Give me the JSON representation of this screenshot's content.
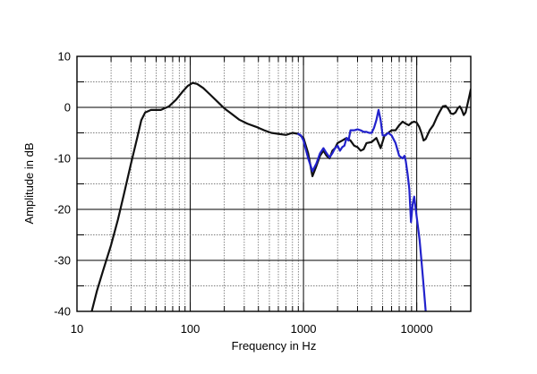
{
  "chart_data": {
    "type": "line",
    "title": "",
    "xlabel": "Frequency in Hz",
    "ylabel": "Amplitude in dB",
    "xscale": "log",
    "xlim": [
      10,
      30000
    ],
    "ylim": [
      -40,
      10
    ],
    "xticks": [
      10,
      100,
      1000,
      10000
    ],
    "xtick_labels": [
      "10",
      "100",
      "1000",
      "10000"
    ],
    "yticks": [
      -40,
      -30,
      -20,
      -10,
      0,
      10
    ],
    "ytick_labels": [
      "-40",
      "-30",
      "-20",
      "-10",
      "0",
      "10"
    ],
    "grid": "on",
    "legend": "none",
    "colors": {
      "black": "#111111",
      "blue": "#2222cc",
      "grid": "#555555"
    },
    "series": [
      {
        "color": "#111111",
        "points": [
          [
            13.5,
            -40
          ],
          [
            15,
            -36
          ],
          [
            17,
            -32
          ],
          [
            20,
            -27
          ],
          [
            23,
            -22
          ],
          [
            26,
            -17
          ],
          [
            30,
            -11
          ],
          [
            34,
            -6
          ],
          [
            37,
            -2.5
          ],
          [
            40,
            -1
          ],
          [
            45,
            -0.5
          ],
          [
            55,
            -0.5
          ],
          [
            65,
            0.2
          ],
          [
            75,
            1.5
          ],
          [
            85,
            3
          ],
          [
            95,
            4.2
          ],
          [
            105,
            4.8
          ],
          [
            115,
            4.6
          ],
          [
            130,
            3.8
          ],
          [
            150,
            2.5
          ],
          [
            180,
            0.8
          ],
          [
            200,
            -0.2
          ],
          [
            230,
            -1.2
          ],
          [
            270,
            -2.4
          ],
          [
            320,
            -3.2
          ],
          [
            380,
            -3.8
          ],
          [
            450,
            -4.5
          ],
          [
            520,
            -5
          ],
          [
            600,
            -5.2
          ],
          [
            700,
            -5.4
          ],
          [
            800,
            -5
          ],
          [
            900,
            -5.2
          ],
          [
            1000,
            -6
          ],
          [
            1100,
            -9
          ],
          [
            1200,
            -13.5
          ],
          [
            1300,
            -11.5
          ],
          [
            1400,
            -9.5
          ],
          [
            1500,
            -8.5
          ],
          [
            1600,
            -9.5
          ],
          [
            1700,
            -10
          ],
          [
            1800,
            -8.5
          ],
          [
            1900,
            -8
          ],
          [
            2000,
            -7
          ],
          [
            2200,
            -6.5
          ],
          [
            2400,
            -6
          ],
          [
            2600,
            -6.5
          ],
          [
            2800,
            -7.5
          ],
          [
            3000,
            -7.8
          ],
          [
            3200,
            -8.5
          ],
          [
            3400,
            -8.2
          ],
          [
            3600,
            -7
          ],
          [
            4000,
            -6.8
          ],
          [
            4400,
            -6
          ],
          [
            4800,
            -8
          ],
          [
            5200,
            -5.5
          ],
          [
            5600,
            -5
          ],
          [
            6000,
            -4.5
          ],
          [
            6500,
            -4.5
          ],
          [
            7000,
            -3.5
          ],
          [
            7500,
            -2.8
          ],
          [
            8000,
            -3.2
          ],
          [
            8500,
            -3.5
          ],
          [
            9000,
            -3
          ],
          [
            9500,
            -2.8
          ],
          [
            10000,
            -3
          ],
          [
            10500,
            -3.8
          ],
          [
            11000,
            -5
          ],
          [
            11500,
            -6.5
          ],
          [
            12000,
            -6.2
          ],
          [
            13000,
            -4.5
          ],
          [
            14000,
            -3.5
          ],
          [
            15000,
            -2
          ],
          [
            16000,
            -0.8
          ],
          [
            17000,
            0.2
          ],
          [
            18000,
            0.3
          ],
          [
            19000,
            -0.3
          ],
          [
            20000,
            -1.2
          ],
          [
            21000,
            -1.3
          ],
          [
            22000,
            -1
          ],
          [
            23000,
            -0.2
          ],
          [
            24000,
            0.2
          ],
          [
            25000,
            -0.5
          ],
          [
            26000,
            -1.5
          ],
          [
            27000,
            -1
          ],
          [
            28000,
            0.5
          ],
          [
            29000,
            2
          ],
          [
            30000,
            3.5
          ]
        ]
      },
      {
        "color": "#2222cc",
        "points": [
          [
            900,
            -5.2
          ],
          [
            950,
            -5.5
          ],
          [
            1000,
            -6.5
          ],
          [
            1100,
            -10
          ],
          [
            1200,
            -12.5
          ],
          [
            1300,
            -11
          ],
          [
            1400,
            -9
          ],
          [
            1500,
            -8
          ],
          [
            1600,
            -9
          ],
          [
            1700,
            -9.8
          ],
          [
            1800,
            -9
          ],
          [
            1900,
            -8
          ],
          [
            2000,
            -7.5
          ],
          [
            2100,
            -8.5
          ],
          [
            2200,
            -7.8
          ],
          [
            2300,
            -7.5
          ],
          [
            2400,
            -6
          ],
          [
            2500,
            -6.5
          ],
          [
            2600,
            -4.5
          ],
          [
            2800,
            -4.5
          ],
          [
            3000,
            -4.3
          ],
          [
            3200,
            -4.5
          ],
          [
            3400,
            -4.8
          ],
          [
            3600,
            -4.8
          ],
          [
            3800,
            -5
          ],
          [
            4000,
            -5
          ],
          [
            4200,
            -4
          ],
          [
            4400,
            -2.5
          ],
          [
            4600,
            -0.5
          ],
          [
            4800,
            -2.5
          ],
          [
            5000,
            -5.5
          ],
          [
            5300,
            -5.5
          ],
          [
            5600,
            -5
          ],
          [
            6000,
            -5.5
          ],
          [
            6500,
            -7
          ],
          [
            7000,
            -9.5
          ],
          [
            7500,
            -10
          ],
          [
            7800,
            -9.5
          ],
          [
            8000,
            -10.5
          ],
          [
            8300,
            -13
          ],
          [
            8600,
            -16
          ],
          [
            8900,
            -22.5
          ],
          [
            9200,
            -19
          ],
          [
            9500,
            -17.5
          ],
          [
            9800,
            -20
          ],
          [
            10200,
            -23
          ],
          [
            10600,
            -26
          ],
          [
            11000,
            -30
          ],
          [
            11400,
            -34
          ],
          [
            11800,
            -38
          ],
          [
            12000,
            -40
          ]
        ]
      }
    ]
  }
}
